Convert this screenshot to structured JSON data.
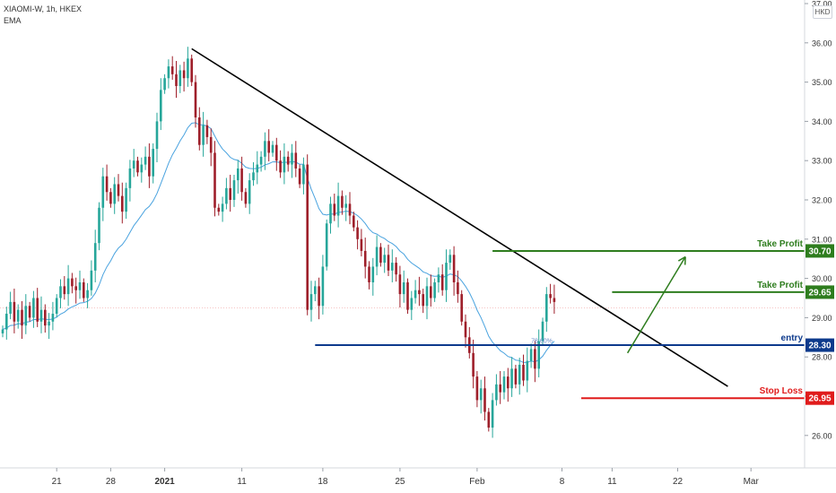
{
  "legend": {
    "symbol_line": "XIAOMI-W, 1h, HKEX",
    "indicator": "EMA"
  },
  "currency": "HKD",
  "colors": {
    "up_candle": "#26a69a",
    "down_candle": "#9e1f2a",
    "ema": "#4aa3df",
    "trendline": "#000000",
    "take_profit": "#2e7d1e",
    "entry": "#0d3a8c",
    "stop_loss": "#e01b1b"
  },
  "chart_data": {
    "type": "candlestick",
    "symbol": "XIAOMI-W",
    "timeframe": "1h",
    "exchange": "HKEX",
    "currency": "HKD",
    "y_range": [
      25.0,
      37.0
    ],
    "y_ticks": [
      "26.00",
      "27.00",
      "28.00",
      "29.00",
      "30.00",
      "31.00",
      "32.00",
      "33.00",
      "34.00",
      "35.00",
      "36.00",
      "37.00"
    ],
    "y_tick_values": [
      26,
      27,
      28,
      29,
      30,
      31,
      32,
      33,
      34,
      35,
      36,
      37
    ],
    "x_ticks": [
      "21",
      "28",
      "2021",
      "11",
      "18",
      "25",
      "Feb",
      "8",
      "11",
      "22",
      "Mar"
    ],
    "x_tick_index": [
      14,
      28,
      42,
      62,
      83,
      103,
      123,
      145,
      158,
      175,
      194
    ],
    "series_approx_close": [
      28.7,
      29.1,
      29.4,
      28.9,
      29.2,
      28.8,
      29.3,
      29.0,
      29.5,
      28.9,
      29.2,
      28.8,
      28.9,
      29.1,
      29.5,
      29.8,
      29.6,
      30.0,
      29.8,
      29.7,
      29.9,
      29.5,
      29.7,
      30.2,
      30.9,
      31.8,
      32.6,
      32.2,
      31.9,
      32.4,
      32.1,
      31.7,
      32.3,
      32.8,
      33.0,
      32.7,
      32.9,
      33.1,
      32.6,
      33.3,
      34.0,
      34.8,
      35.1,
      35.4,
      35.2,
      34.9,
      35.3,
      35.1,
      35.6,
      35.0,
      34.1,
      33.4,
      33.9,
      33.6,
      33.2,
      31.8,
      31.7,
      31.9,
      32.3,
      32.0,
      32.5,
      32.8,
      32.2,
      31.9,
      32.5,
      32.7,
      32.9,
      33.1,
      33.5,
      33.2,
      33.4,
      33.0,
      32.7,
      33.1,
      32.9,
      33.2,
      32.8,
      32.4,
      32.9,
      29.2,
      29.6,
      29.8,
      29.3,
      30.3,
      31.4,
      31.9,
      31.6,
      32.1,
      31.8,
      31.9,
      31.6,
      31.3,
      31.0,
      30.7,
      30.3,
      29.9,
      30.3,
      30.8,
      30.4,
      30.6,
      30.2,
      30.4,
      30.1,
      29.6,
      29.9,
      29.2,
      29.5,
      29.7,
      29.6,
      29.3,
      29.8,
      29.5,
      29.9,
      30.1,
      29.7,
      30.4,
      30.6,
      29.9,
      29.6,
      28.9,
      28.5,
      28.1,
      27.5,
      26.9,
      27.2,
      26.6,
      26.2,
      26.9,
      27.3,
      27.1,
      27.5,
      27.2,
      27.7,
      27.3,
      27.8,
      27.4,
      27.9,
      28.2,
      27.7,
      28.4,
      28.9,
      29.6,
      29.5,
      29.4
    ],
    "indicator": {
      "name": "EMA"
    },
    "annotations": [
      {
        "label": "Take Profit",
        "value": 30.7,
        "badge": "30.70",
        "kind": "take-profit-1"
      },
      {
        "label": "Take Profit",
        "value": 29.65,
        "badge": "29.65",
        "kind": "take-profit-2"
      },
      {
        "label": "entry",
        "value": 28.3,
        "badge": "28.30",
        "kind": "entry"
      },
      {
        "label": "Stop Loss",
        "value": 26.95,
        "badge": "26.95",
        "kind": "stop-loss"
      }
    ],
    "fib_label": "78.60%",
    "trendline": {
      "from": {
        "index": 49,
        "price": 35.85
      },
      "to": {
        "index": 188,
        "price": 27.25
      }
    },
    "arrow": {
      "from": {
        "index": 162,
        "price": 28.1
      },
      "to": {
        "index": 177,
        "price": 30.55
      }
    },
    "grid": false,
    "legend_position": "top-left"
  }
}
